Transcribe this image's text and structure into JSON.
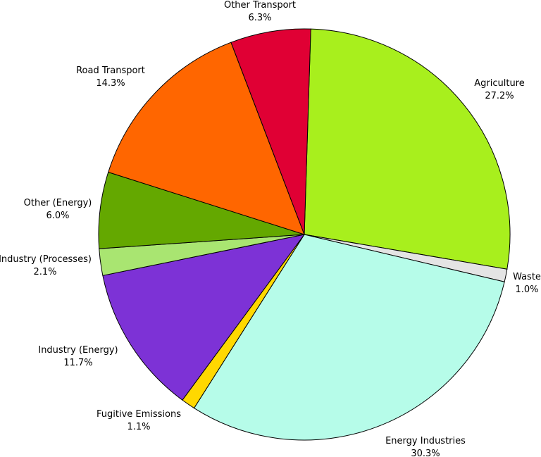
{
  "chart_data": {
    "type": "pie",
    "title": "",
    "slices": [
      {
        "label": "Agriculture",
        "value": 27.2,
        "value_text": "27.2%",
        "color": "#a8ef1d"
      },
      {
        "label": "Waste",
        "value": 1.0,
        "value_text": "1.0%",
        "color": "#e4e4e4"
      },
      {
        "label": "Energy Industries",
        "value": 30.3,
        "value_text": "30.3%",
        "color": "#b6fce9"
      },
      {
        "label": "Fugitive Emissions",
        "value": 1.1,
        "value_text": "1.1%",
        "color": "#ffd800"
      },
      {
        "label": "Industry (Energy)",
        "value": 11.7,
        "value_text": "11.7%",
        "color": "#7d32d6"
      },
      {
        "label": "Industry (Processes)",
        "value": 2.1,
        "value_text": "2.1%",
        "color": "#a9e571"
      },
      {
        "label": "Other (Energy)",
        "value": 6.0,
        "value_text": "6.0%",
        "color": "#64a800"
      },
      {
        "label": "Road Transport",
        "value": 14.3,
        "value_text": "14.3%",
        "color": "#ff6600"
      },
      {
        "label": "Other Transport",
        "value": 6.3,
        "value_text": "6.3%",
        "color": "#e00034"
      }
    ],
    "start_direction": "top, just right of center",
    "order": "clockwise",
    "legend": "none (labels beside slices)"
  }
}
